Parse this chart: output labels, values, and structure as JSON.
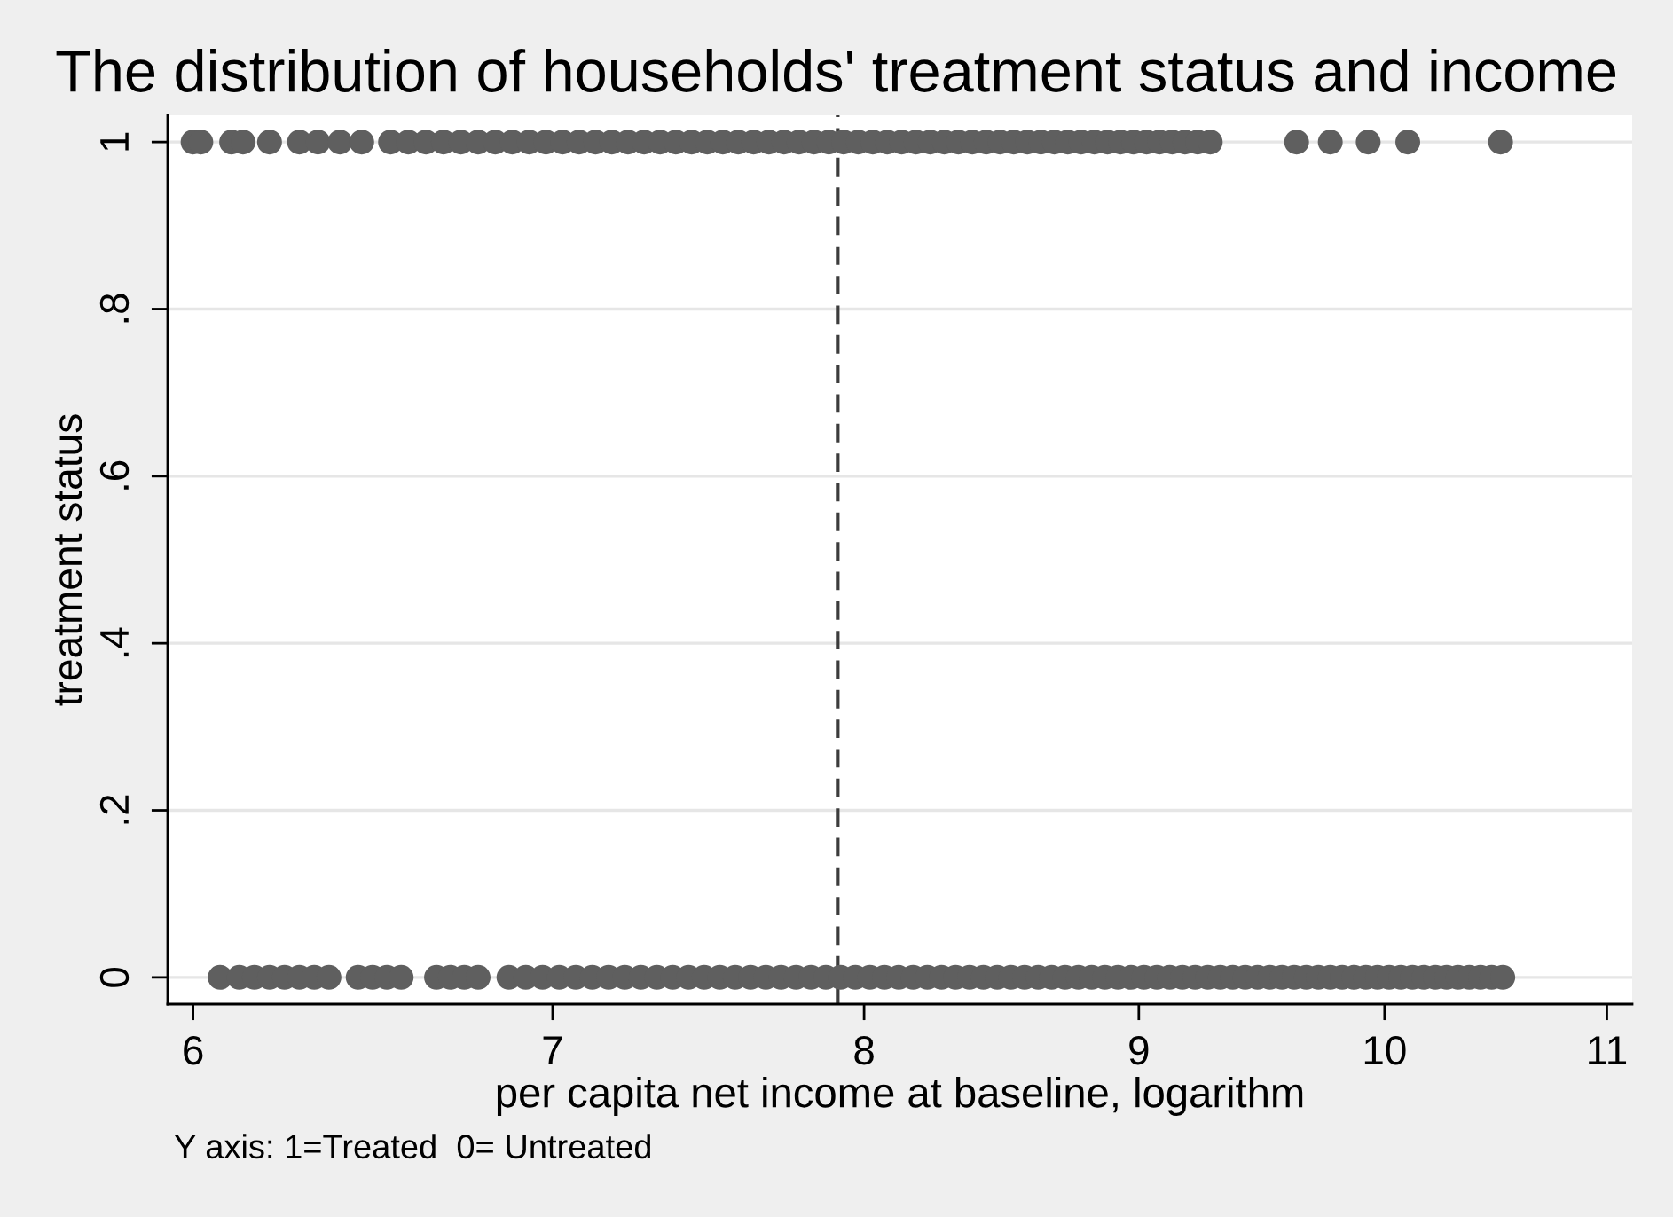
{
  "chart_data": {
    "type": "scatter",
    "title": "The distribution of households' treatment status and income",
    "xlabel": "per capita net income at baseline, logarithm",
    "ylabel": "treatment status",
    "annotations": [
      "Y axis: 1=Treated  0= Untreated"
    ],
    "log": "x",
    "grid": "y",
    "marker": "circle",
    "xlim": [
      5.935,
      11.12
    ],
    "xticks": [
      6,
      7,
      8,
      9,
      10,
      11
    ],
    "ylim": [
      -0.032,
      1.032
    ],
    "yticks": [
      0,
      {
        "value": 0.2,
        "label": ".2"
      },
      {
        "value": 0.4,
        "label": ".4"
      },
      {
        "value": 0.6,
        "label": ".6"
      },
      {
        "value": 0.8,
        "label": ".8"
      },
      1
    ],
    "ref_lines": [
      {
        "axis": "x",
        "value": 7.91,
        "color": "#3c3c3c",
        "line_style": "dashed"
      }
    ],
    "series": [
      {
        "color": "#5f5f5f",
        "x": [
          6.0,
          6.02,
          6.1,
          6.13,
          6.2,
          6.28,
          6.33,
          6.39,
          6.45,
          6.53,
          6.58,
          6.63,
          6.68,
          6.73,
          6.78,
          6.83,
          6.88,
          6.93,
          6.98,
          7.03,
          7.08,
          7.13,
          7.18,
          7.23,
          7.28,
          7.33,
          7.38,
          7.43,
          7.48,
          7.53,
          7.58,
          7.63,
          7.68,
          7.73,
          7.78,
          7.83,
          7.88,
          7.93,
          7.98,
          8.03,
          8.08,
          8.13,
          8.18,
          8.23,
          8.28,
          8.33,
          8.38,
          8.43,
          8.48,
          8.53,
          8.58,
          8.63,
          8.68,
          8.73,
          8.78,
          8.83,
          8.88,
          8.93,
          8.98,
          9.03,
          9.08,
          9.13,
          9.18,
          9.23,
          9.28,
          9.63,
          9.77,
          9.93,
          10.1,
          10.51
        ],
        "values": [
          1,
          1,
          1,
          1,
          1,
          1,
          1,
          1,
          1,
          1,
          1,
          1,
          1,
          1,
          1,
          1,
          1,
          1,
          1,
          1,
          1,
          1,
          1,
          1,
          1,
          1,
          1,
          1,
          1,
          1,
          1,
          1,
          1,
          1,
          1,
          1,
          1,
          1,
          1,
          1,
          1,
          1,
          1,
          1,
          1,
          1,
          1,
          1,
          1,
          1,
          1,
          1,
          1,
          1,
          1,
          1,
          1,
          1,
          1,
          1,
          1,
          1,
          1,
          1,
          1,
          1,
          1,
          1,
          1,
          1
        ]
      },
      {
        "color": "#5f5f5f",
        "x": [
          6.07,
          6.12,
          6.16,
          6.2,
          6.24,
          6.28,
          6.32,
          6.36,
          6.44,
          6.48,
          6.52,
          6.56,
          6.66,
          6.7,
          6.74,
          6.78,
          6.87,
          6.92,
          6.97,
          7.02,
          7.07,
          7.12,
          7.17,
          7.22,
          7.27,
          7.32,
          7.37,
          7.42,
          7.47,
          7.52,
          7.57,
          7.62,
          7.67,
          7.72,
          7.77,
          7.82,
          7.87,
          7.92,
          7.97,
          8.02,
          8.07,
          8.12,
          8.17,
          8.22,
          8.27,
          8.32,
          8.37,
          8.42,
          8.47,
          8.52,
          8.57,
          8.62,
          8.67,
          8.72,
          8.77,
          8.82,
          8.87,
          8.92,
          8.97,
          9.02,
          9.07,
          9.12,
          9.17,
          9.22,
          9.27,
          9.32,
          9.37,
          9.42,
          9.47,
          9.52,
          9.57,
          9.62,
          9.67,
          9.72,
          9.77,
          9.82,
          9.87,
          9.92,
          9.97,
          10.02,
          10.07,
          10.12,
          10.17,
          10.22,
          10.27,
          10.32,
          10.37,
          10.42,
          10.47,
          10.52
        ],
        "values": [
          0,
          0,
          0,
          0,
          0,
          0,
          0,
          0,
          0,
          0,
          0,
          0,
          0,
          0,
          0,
          0,
          0,
          0,
          0,
          0,
          0,
          0,
          0,
          0,
          0,
          0,
          0,
          0,
          0,
          0,
          0,
          0,
          0,
          0,
          0,
          0,
          0,
          0,
          0,
          0,
          0,
          0,
          0,
          0,
          0,
          0,
          0,
          0,
          0,
          0,
          0,
          0,
          0,
          0,
          0,
          0,
          0,
          0,
          0,
          0,
          0,
          0,
          0,
          0,
          0,
          0,
          0,
          0,
          0,
          0,
          0,
          0,
          0,
          0,
          0,
          0,
          0,
          0,
          0,
          0,
          0,
          0,
          0,
          0,
          0,
          0,
          0,
          0,
          0,
          0
        ]
      }
    ]
  }
}
